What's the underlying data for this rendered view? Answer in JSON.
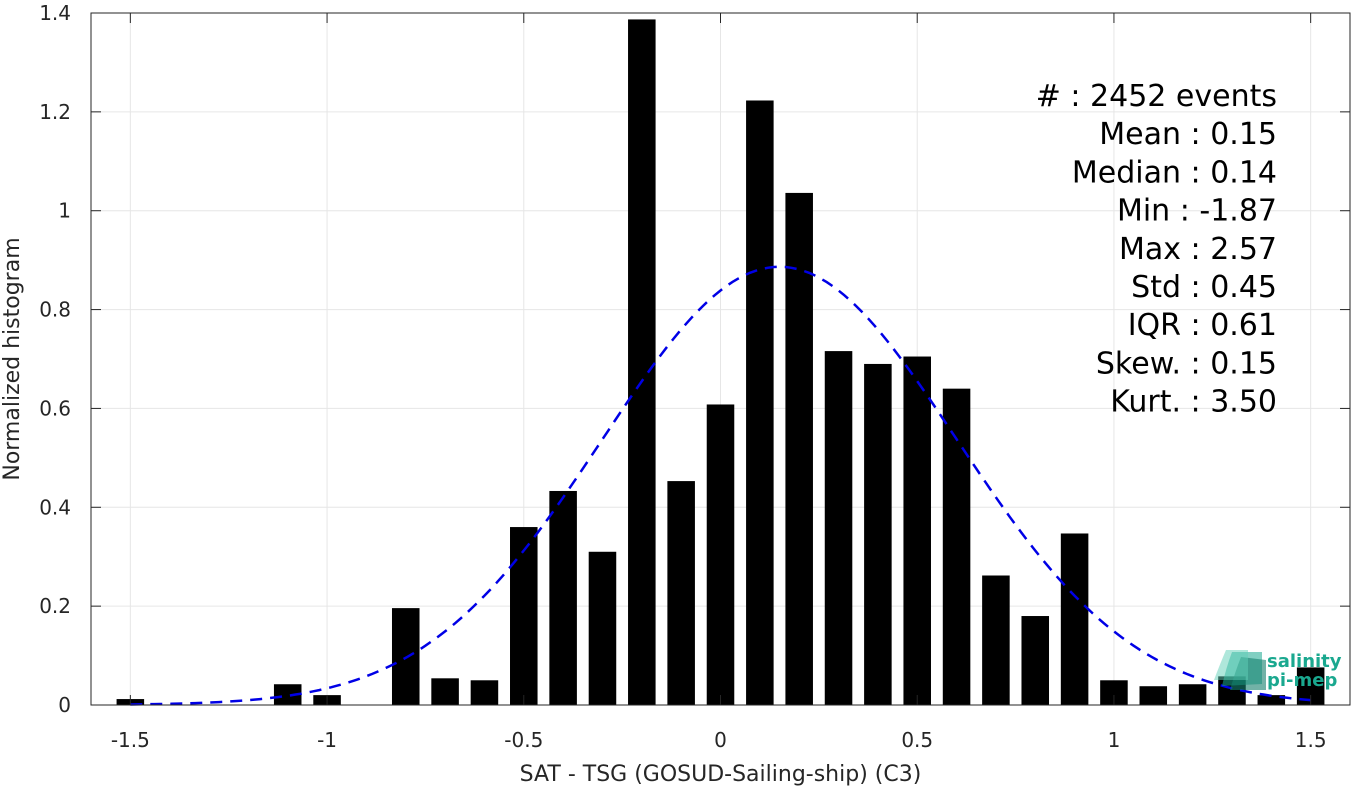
{
  "chart_data": {
    "type": "bar",
    "xlabel": "SAT - TSG (GOSUD-Sailing-ship) (C3)",
    "ylabel": "Normalized histogram",
    "xlim": [
      -1.6,
      1.6
    ],
    "ylim": [
      0,
      1.4
    ],
    "grid": true,
    "xticks": [
      "-1.5",
      "-1",
      "-0.5",
      "0",
      "0.5",
      "1",
      "1.5"
    ],
    "yticks": [
      "0",
      "0.2",
      "0.4",
      "0.6",
      "0.8",
      "1",
      "1.2",
      "1.4"
    ],
    "bin_width": 0.1,
    "bars": [
      {
        "x": -1.5,
        "y": 0.012
      },
      {
        "x": -1.1,
        "y": 0.042
      },
      {
        "x": -1.0,
        "y": 0.02
      },
      {
        "x": -0.8,
        "y": 0.196
      },
      {
        "x": -0.7,
        "y": 0.054
      },
      {
        "x": -0.6,
        "y": 0.05
      },
      {
        "x": -0.5,
        "y": 0.36
      },
      {
        "x": -0.4,
        "y": 0.433
      },
      {
        "x": -0.3,
        "y": 0.31
      },
      {
        "x": -0.2,
        "y": 1.387
      },
      {
        "x": -0.1,
        "y": 0.453
      },
      {
        "x": 0.0,
        "y": 0.608
      },
      {
        "x": 0.1,
        "y": 1.223
      },
      {
        "x": 0.2,
        "y": 1.036
      },
      {
        "x": 0.3,
        "y": 0.716
      },
      {
        "x": 0.4,
        "y": 0.69
      },
      {
        "x": 0.5,
        "y": 0.705
      },
      {
        "x": 0.6,
        "y": 0.64
      },
      {
        "x": 0.7,
        "y": 0.262
      },
      {
        "x": 0.8,
        "y": 0.18
      },
      {
        "x": 0.9,
        "y": 0.347
      },
      {
        "x": 1.0,
        "y": 0.05
      },
      {
        "x": 1.1,
        "y": 0.038
      },
      {
        "x": 1.2,
        "y": 0.042
      },
      {
        "x": 1.3,
        "y": 0.058
      },
      {
        "x": 1.4,
        "y": 0.02
      },
      {
        "x": 1.5,
        "y": 0.076
      }
    ],
    "fit_curve": {
      "type": "gaussian",
      "mean": 0.15,
      "std": 0.45,
      "color": "#0000e6"
    },
    "bar_color": "#000000",
    "stats": [
      "#  : 2452 events",
      "Mean : 0.15",
      "Median : 0.14",
      "Min : -1.87",
      "Max : 2.57",
      "Std : 0.45",
      "IQR : 0.61",
      "Skew. : 0.15",
      "Kurt. : 3.50"
    ],
    "logo": {
      "line1": "salinity",
      "line2": "pi-mep",
      "color": "#1aa88f"
    }
  }
}
